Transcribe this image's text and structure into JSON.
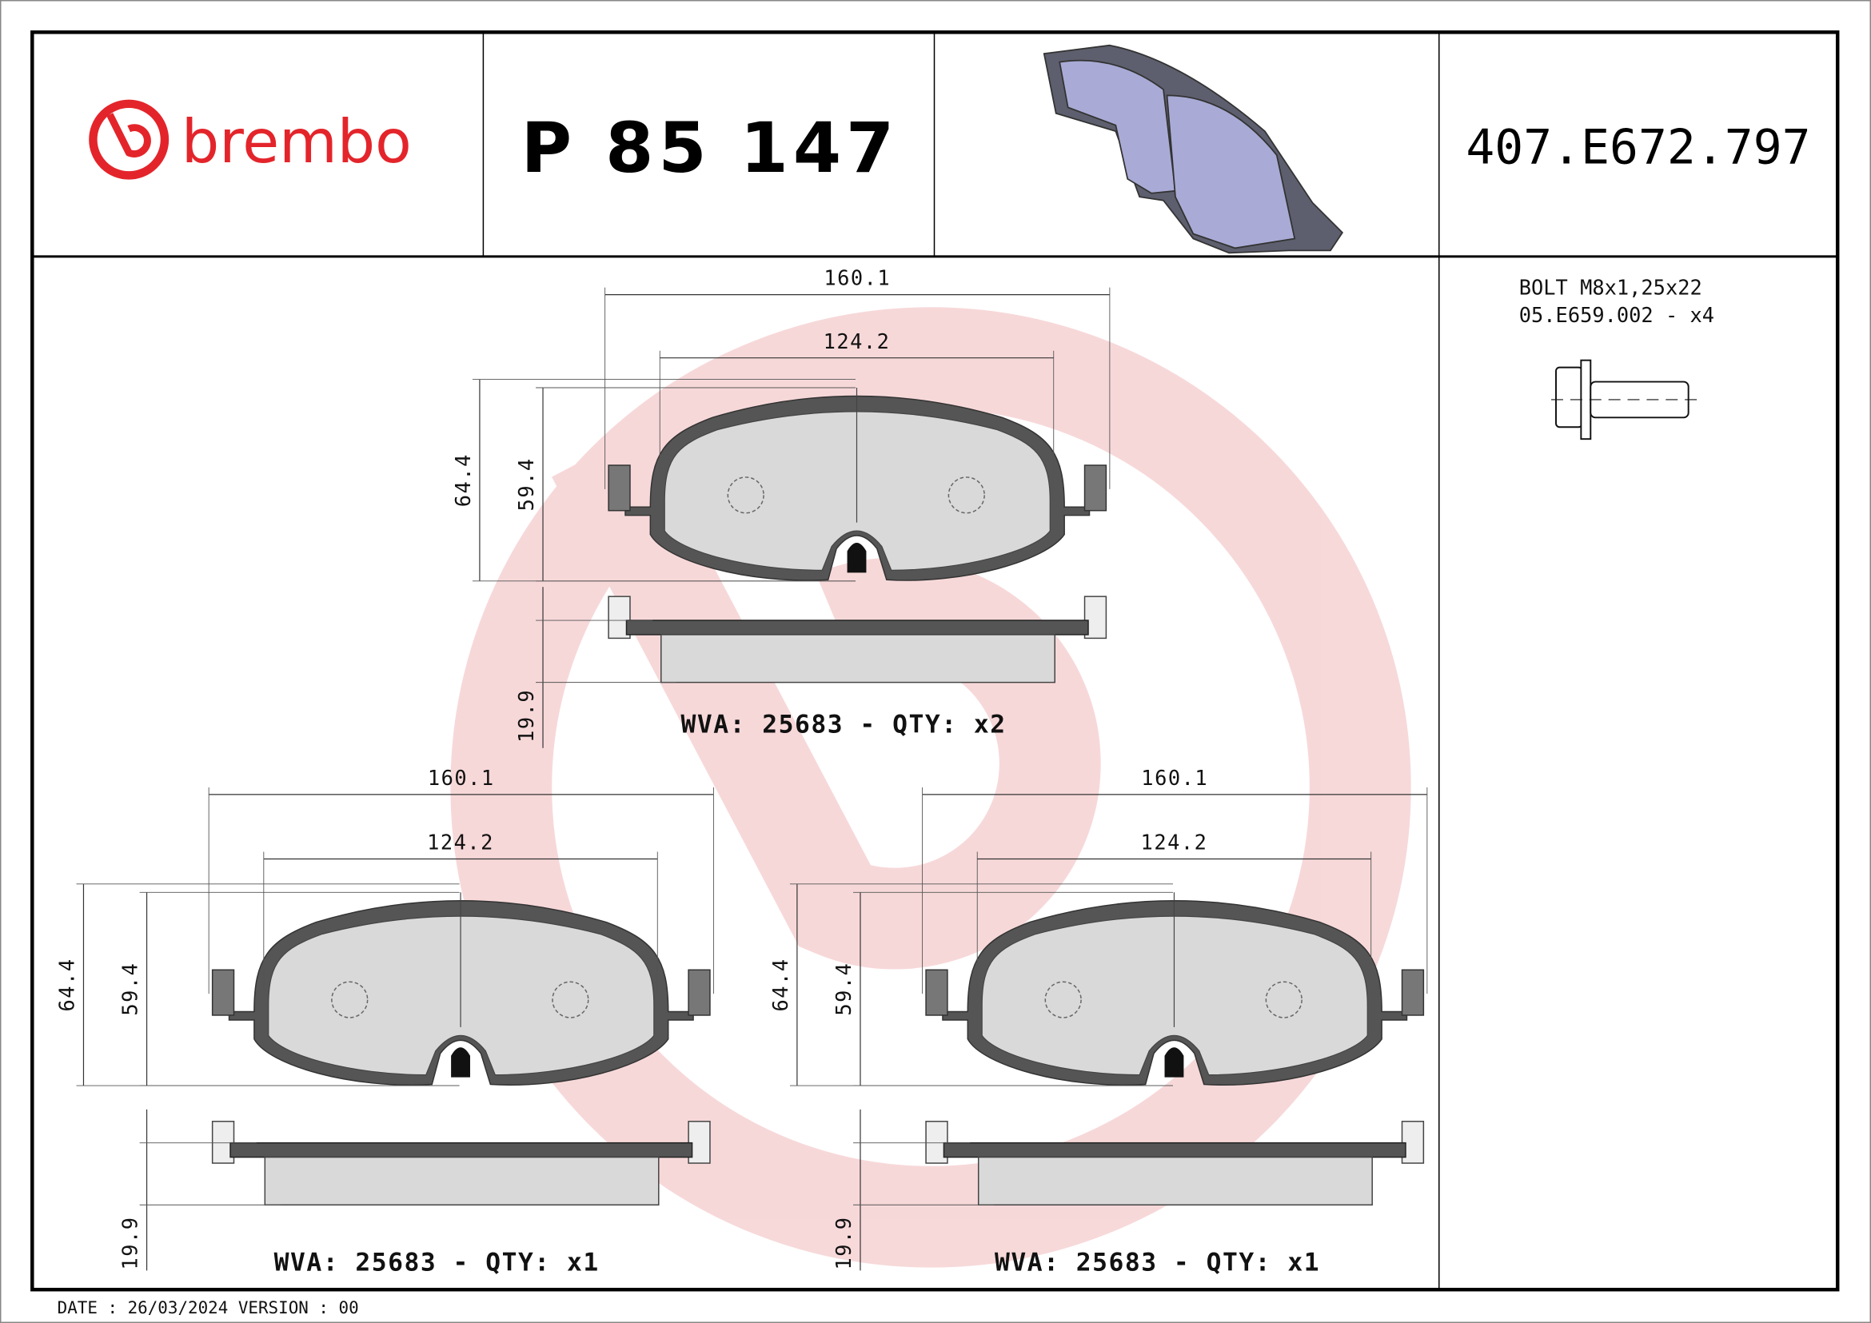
{
  "header": {
    "brand": "brembo",
    "brand_color": "#e3252b",
    "part_number": "P 85 147",
    "reference": "407.E672.797"
  },
  "accessory": {
    "line1": "BOLT M8x1,25x22",
    "line2": "05.E659.002 - x4",
    "icon": "bolt-icon"
  },
  "views": [
    {
      "width_outer": "160.1",
      "width_inner": "124.2",
      "height_outer": "64.4",
      "height_inner": "59.4",
      "thickness": "19.9",
      "label": "WVA: 25683 - QTY: x2"
    },
    {
      "width_outer": "160.1",
      "width_inner": "124.2",
      "height_outer": "64.4",
      "height_inner": "59.4",
      "thickness": "19.9",
      "label": "WVA: 25683 - QTY: x1"
    },
    {
      "width_outer": "160.1",
      "width_inner": "124.2",
      "height_outer": "64.4",
      "height_inner": "59.4",
      "thickness": "19.9",
      "label": "WVA: 25683 - QTY: x1"
    }
  ],
  "footer": {
    "date_version": "DATE : 26/03/2024 VERSION : 00"
  },
  "colors": {
    "watermark": "#f6d2d3",
    "pad_friction": "#d9d9d9",
    "backplate": "#555555",
    "render_pad": "#a9abd6"
  }
}
